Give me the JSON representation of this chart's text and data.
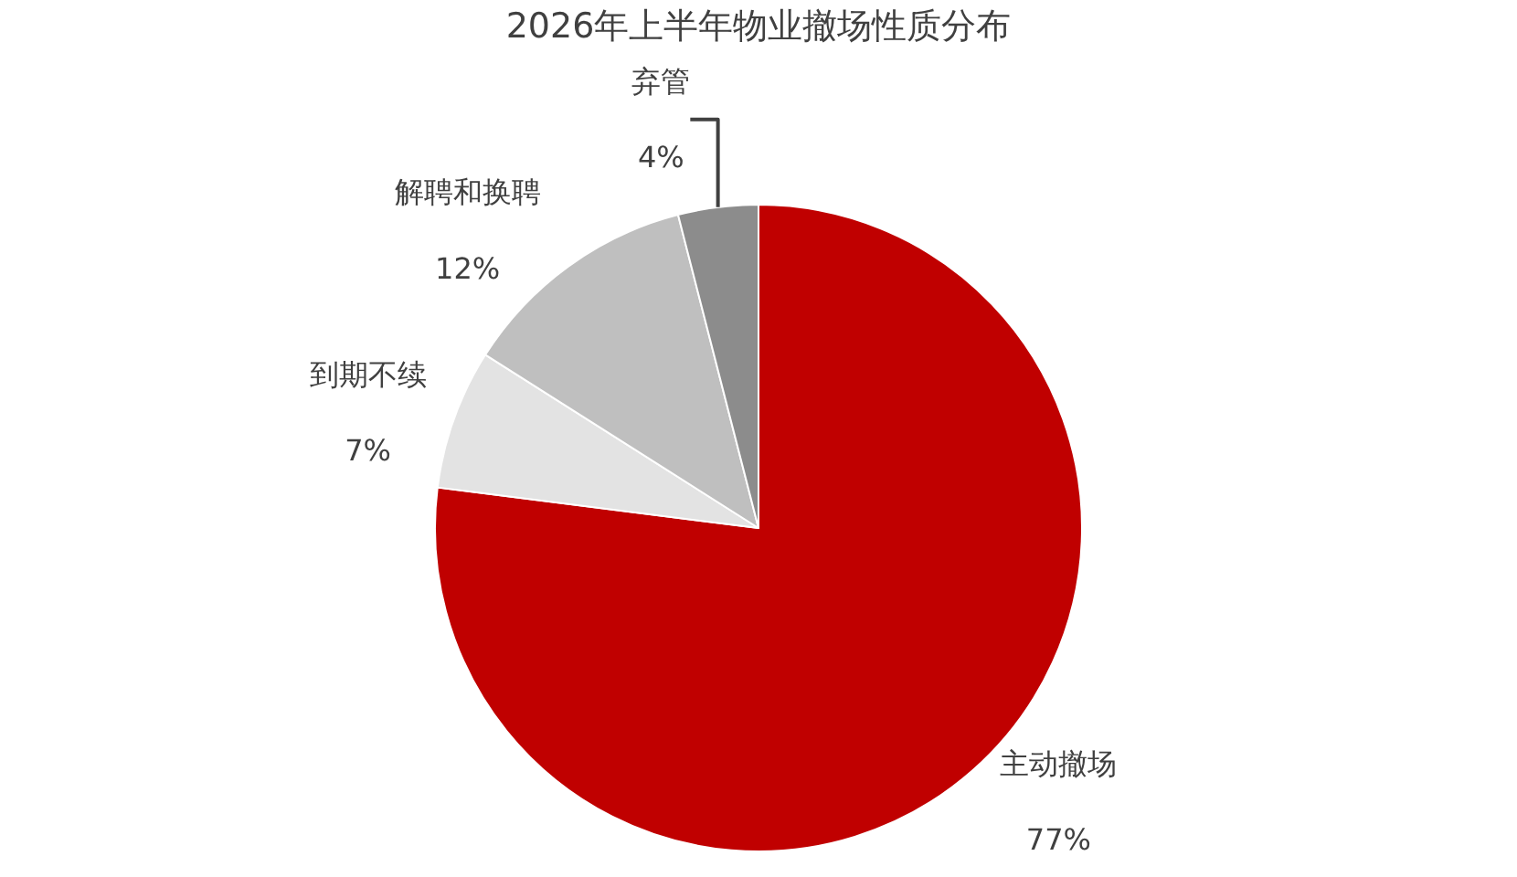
{
  "chart_data": {
    "type": "pie",
    "title": "2026年上半年物业撤场性质分布",
    "categories": [
      "主动撤场",
      "到期不续",
      "解聘和换聘",
      "弃管"
    ],
    "values": [
      77,
      7,
      12,
      4
    ],
    "value_labels": [
      "77%",
      "7%",
      "12%",
      "4%"
    ],
    "colors": [
      "#c00000",
      "#e3e3e3",
      "#bfbfbf",
      "#8c8c8c"
    ],
    "legend": false
  }
}
